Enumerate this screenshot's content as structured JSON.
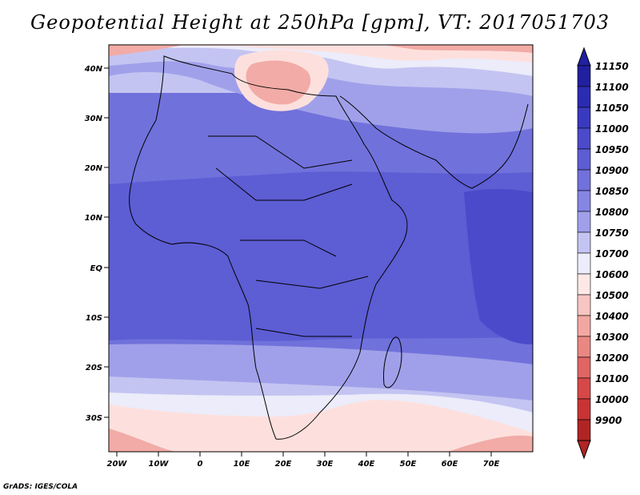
{
  "title": "Geopotential Height at 250hPa [gpm], VT: 2017051703",
  "footer": "GrADS: IGES/COLA",
  "map": {
    "lat_labels": [
      "40N",
      "30N",
      "20N",
      "10N",
      "EQ",
      "10S",
      "20S",
      "30S"
    ],
    "lon_labels": [
      "20W",
      "10W",
      "0",
      "10E",
      "20E",
      "30E",
      "40E",
      "50E",
      "60E",
      "70E"
    ],
    "lat_range": [
      -37,
      45
    ],
    "lon_range": [
      -22,
      80
    ]
  },
  "legend": {
    "levels": [
      "11150",
      "11100",
      "11050",
      "11000",
      "10950",
      "10900",
      "10850",
      "10800",
      "10750",
      "10700",
      "10600",
      "10500",
      "10400",
      "10300",
      "10200",
      "10100",
      "10000",
      "9900"
    ],
    "colors": [
      "#2020a0",
      "#2b2bb2",
      "#3a3ac0",
      "#4a4acb",
      "#5d5dd4",
      "#7171dc",
      "#8585e4",
      "#a0a0ea",
      "#c4c4f2",
      "#ececfa",
      "#fde8e6",
      "#f7c6c2",
      "#f2a7a2",
      "#e98783",
      "#df6663",
      "#d64848",
      "#c83434",
      "#b02424"
    ]
  },
  "colors": {
    "deep_blue": "#4a4acb",
    "mid_blue": "#7171dc",
    "light_blue": "#a0a0ea",
    "pale_blue": "#c4c4f2",
    "white": "#ffffff",
    "pale_pink": "#fde0dd",
    "pink": "#f2aba6",
    "red": "#e98783"
  }
}
